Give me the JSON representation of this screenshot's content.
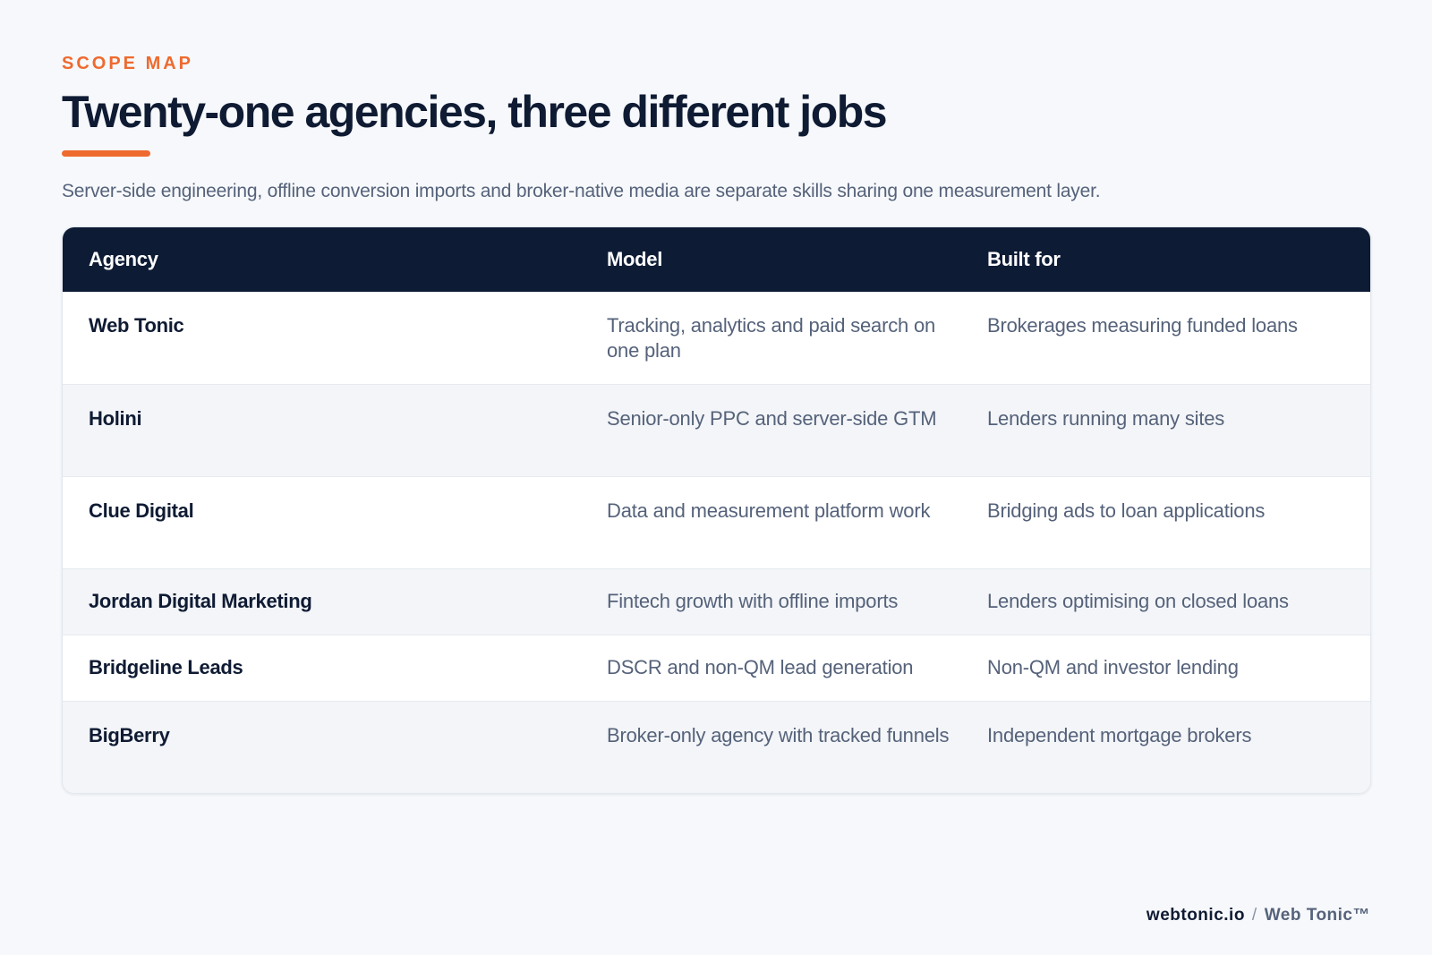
{
  "header": {
    "eyebrow": "SCOPE MAP",
    "title": "Twenty-one agencies, three different jobs",
    "subtitle": "Server-side engineering, offline conversion imports and broker-native media are separate skills sharing one measurement layer."
  },
  "table": {
    "columns": [
      "Agency",
      "Model",
      "Built for"
    ],
    "rows": [
      {
        "agency": "Web Tonic",
        "model": "Tracking, analytics and paid search on one plan",
        "built_for": "Brokerages measuring funded loans"
      },
      {
        "agency": "Holini",
        "model": "Senior-only PPC and server-side GTM",
        "built_for": "Lenders running many sites"
      },
      {
        "agency": "Clue Digital",
        "model": "Data and measurement platform work",
        "built_for": "Bridging ads to loan applications"
      },
      {
        "agency": "Jordan Digital Marketing",
        "model": "Fintech growth with offline imports",
        "built_for": "Lenders optimising on closed loans"
      },
      {
        "agency": "Bridgeline Leads",
        "model": "DSCR and non-QM lead generation",
        "built_for": "Non-QM and investor lending"
      },
      {
        "agency": "BigBerry",
        "model": "Broker-only agency with tracked funnels",
        "built_for": "Independent mortgage brokers"
      }
    ]
  },
  "footer": {
    "domain": "webtonic.io",
    "separator": "/",
    "brand": "Web Tonic™"
  },
  "colors": {
    "accent": "#ee6a2f",
    "header_bg": "#0d1b35",
    "page_bg": "#f6f8fb"
  }
}
